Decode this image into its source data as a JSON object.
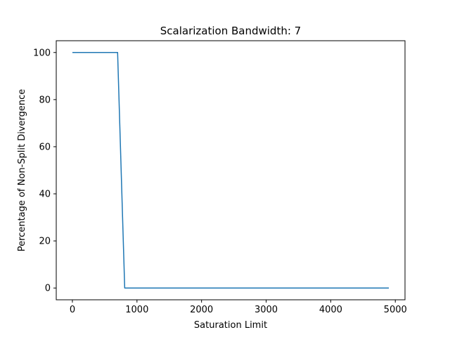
{
  "chart_data": {
    "type": "line",
    "title": "Scalarization Bandwidth: 7",
    "xlabel": "Saturation Limit",
    "ylabel": "Percentage of Non-Split Divergence",
    "xlim": [
      -250,
      5150
    ],
    "ylim": [
      -5,
      105
    ],
    "xticks": [
      0,
      1000,
      2000,
      3000,
      4000,
      5000
    ],
    "xtick_labels": [
      "0",
      "1000",
      "2000",
      "3000",
      "4000",
      "5000"
    ],
    "yticks": [
      0,
      20,
      40,
      60,
      80,
      100
    ],
    "ytick_labels": [
      "0",
      "20",
      "40",
      "60",
      "80",
      "100"
    ],
    "grid": false,
    "legend": "none",
    "series": [
      {
        "color": "#1f77b4",
        "x": [
          0,
          700,
          810,
          4900
        ],
        "y": [
          100,
          100,
          0,
          0
        ]
      }
    ]
  }
}
